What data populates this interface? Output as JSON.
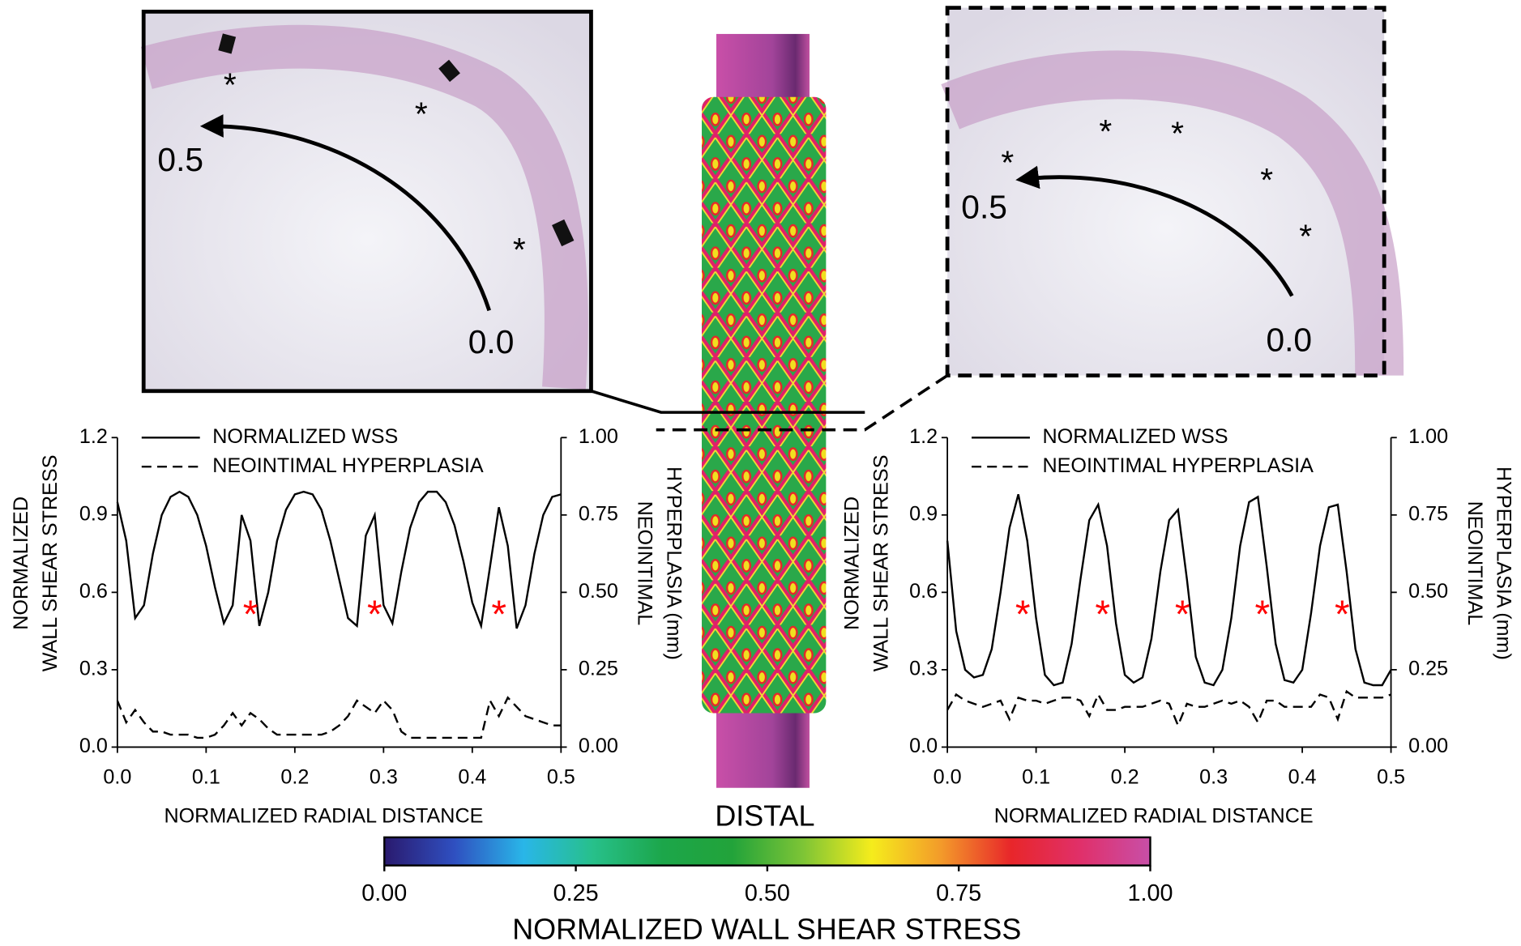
{
  "chart_data": [
    {
      "type": "line",
      "x": [
        0,
        0.01,
        0.02,
        0.03,
        0.04,
        0.05,
        0.06,
        0.07,
        0.08,
        0.09,
        0.1,
        0.11,
        0.12,
        0.13,
        0.14,
        0.15,
        0.16,
        0.17,
        0.18,
        0.19,
        0.2,
        0.21,
        0.22,
        0.23,
        0.24,
        0.25,
        0.26,
        0.27,
        0.28,
        0.29,
        0.3,
        0.31,
        0.32,
        0.33,
        0.34,
        0.35,
        0.36,
        0.37,
        0.38,
        0.39,
        0.4,
        0.41,
        0.42,
        0.43,
        0.44,
        0.45,
        0.46,
        0.47,
        0.48,
        0.49,
        0.5
      ],
      "xlim": [
        0,
        0.5
      ],
      "xticks": [
        {
          "value": 0,
          "label": "0.0"
        },
        0.1,
        0.2,
        0.3,
        0.4,
        0.5
      ],
      "ylim": [
        0,
        1.2
      ],
      "yticks": [
        {
          "value": 0,
          "label": "0.0"
        },
        0.3,
        0.6,
        0.9,
        1.2
      ],
      "y2lim": [
        0,
        1
      ],
      "y2ticks": [
        {
          "value": 0,
          "label": "0.00"
        },
        {
          "value": 0.25,
          "label": "0.25"
        },
        {
          "value": 0.5,
          "label": "0.50"
        },
        {
          "value": 0.75,
          "label": "0.75"
        },
        {
          "value": 1,
          "label": "1.00"
        }
      ],
      "xlabel": "NORMALIZED RADIAL DISTANCE",
      "ylabel": [
        "NORMALIZED",
        "WALL SHEAR STRESS"
      ],
      "y2label": [
        "NEOINTIMAL",
        "HYPERPLASIA (mm)"
      ],
      "series": [
        {
          "name": "NORMALIZED WSS",
          "color": "#000000",
          "line_style": "solid",
          "values": [
            0.95,
            0.8,
            0.5,
            0.55,
            0.75,
            0.9,
            0.97,
            0.99,
            0.97,
            0.9,
            0.78,
            0.62,
            0.48,
            0.55,
            0.9,
            0.8,
            0.47,
            0.6,
            0.8,
            0.92,
            0.98,
            0.99,
            0.98,
            0.92,
            0.8,
            0.65,
            0.5,
            0.47,
            0.82,
            0.9,
            0.55,
            0.48,
            0.68,
            0.85,
            0.95,
            0.99,
            0.99,
            0.95,
            0.86,
            0.72,
            0.56,
            0.47,
            0.7,
            0.93,
            0.78,
            0.46,
            0.55,
            0.75,
            0.9,
            0.97,
            0.98
          ]
        },
        {
          "name": "NEOINTIMAL HYPERPLASIA",
          "color": "#000000",
          "line_style": "dashed",
          "axis": "y2",
          "values": [
            0.15,
            0.08,
            0.12,
            0.08,
            0.05,
            0.05,
            0.04,
            0.04,
            0.04,
            0.03,
            0.03,
            0.04,
            0.07,
            0.11,
            0.07,
            0.11,
            0.09,
            0.06,
            0.04,
            0.04,
            0.04,
            0.04,
            0.04,
            0.04,
            0.05,
            0.07,
            0.1,
            0.15,
            0.13,
            0.11,
            0.15,
            0.12,
            0.05,
            0.03,
            0.03,
            0.03,
            0.03,
            0.03,
            0.03,
            0.03,
            0.03,
            0.03,
            0.15,
            0.1,
            0.16,
            0.13,
            0.1,
            0.09,
            0.08,
            0.07,
            0.07
          ]
        }
      ],
      "annotation_color": "#ff0000",
      "annotations": [
        {
          "text": "*",
          "x": 0.15,
          "y": 0.55
        },
        {
          "text": "*",
          "x": 0.29,
          "y": 0.55
        },
        {
          "text": "*",
          "x": 0.43,
          "y": 0.55
        }
      ]
    },
    {
      "type": "line",
      "x": [
        0,
        0.01,
        0.02,
        0.03,
        0.04,
        0.05,
        0.06,
        0.07,
        0.08,
        0.09,
        0.1,
        0.11,
        0.12,
        0.13,
        0.14,
        0.15,
        0.16,
        0.17,
        0.18,
        0.19,
        0.2,
        0.21,
        0.22,
        0.23,
        0.24,
        0.25,
        0.26,
        0.27,
        0.28,
        0.29,
        0.3,
        0.31,
        0.32,
        0.33,
        0.34,
        0.35,
        0.36,
        0.37,
        0.38,
        0.39,
        0.4,
        0.41,
        0.42,
        0.43,
        0.44,
        0.45,
        0.46,
        0.47,
        0.48,
        0.49,
        0.5
      ],
      "xlim": [
        0,
        0.5
      ],
      "xticks": [
        {
          "value": 0,
          "label": "0.0"
        },
        0.1,
        0.2,
        0.3,
        0.4,
        0.5
      ],
      "ylim": [
        0,
        1.2
      ],
      "yticks": [
        {
          "value": 0,
          "label": "0.0"
        },
        0.3,
        0.6,
        0.9,
        1.2
      ],
      "y2lim": [
        0,
        1
      ],
      "y2ticks": [
        {
          "value": 0,
          "label": "0.00"
        },
        {
          "value": 0.25,
          "label": "0.25"
        },
        {
          "value": 0.5,
          "label": "0.50"
        },
        {
          "value": 0.75,
          "label": "0.75"
        },
        {
          "value": 1,
          "label": "1.00"
        }
      ],
      "xlabel": "NORMALIZED RADIAL DISTANCE",
      "ylabel": [
        "NORMALIZED",
        "WALL SHEAR STRESS"
      ],
      "y2label": [
        "NEOINTIMAL",
        "HYPERPLASIA (mm)"
      ],
      "series": [
        {
          "name": "NORMALIZED WSS",
          "color": "#000000",
          "line_style": "solid",
          "values": [
            0.8,
            0.45,
            0.3,
            0.27,
            0.28,
            0.38,
            0.6,
            0.85,
            0.98,
            0.8,
            0.5,
            0.28,
            0.24,
            0.25,
            0.4,
            0.65,
            0.88,
            0.94,
            0.78,
            0.48,
            0.28,
            0.25,
            0.27,
            0.42,
            0.68,
            0.88,
            0.92,
            0.65,
            0.35,
            0.25,
            0.24,
            0.3,
            0.5,
            0.78,
            0.95,
            0.97,
            0.7,
            0.4,
            0.26,
            0.25,
            0.3,
            0.52,
            0.78,
            0.93,
            0.94,
            0.68,
            0.38,
            0.25,
            0.24,
            0.24,
            0.3
          ]
        },
        {
          "name": "NEOINTIMAL HYPERPLASIA",
          "color": "#000000",
          "line_style": "dashed",
          "axis": "y2",
          "values": [
            0.12,
            0.17,
            0.15,
            0.14,
            0.13,
            0.14,
            0.15,
            0.09,
            0.16,
            0.15,
            0.15,
            0.14,
            0.15,
            0.16,
            0.16,
            0.15,
            0.1,
            0.17,
            0.12,
            0.12,
            0.13,
            0.13,
            0.13,
            0.14,
            0.15,
            0.14,
            0.07,
            0.14,
            0.13,
            0.13,
            0.14,
            0.15,
            0.14,
            0.15,
            0.13,
            0.08,
            0.15,
            0.15,
            0.13,
            0.13,
            0.13,
            0.13,
            0.17,
            0.16,
            0.09,
            0.18,
            0.16,
            0.16,
            0.16,
            0.16,
            0.17
          ]
        }
      ],
      "annotation_color": "#ff0000",
      "annotations": [
        {
          "text": "*",
          "x": 0.085,
          "y": 0.55
        },
        {
          "text": "*",
          "x": 0.175,
          "y": 0.55
        },
        {
          "text": "*",
          "x": 0.265,
          "y": 0.55
        },
        {
          "text": "*",
          "x": 0.355,
          "y": 0.55
        },
        {
          "text": "*",
          "x": 0.445,
          "y": 0.55
        }
      ]
    }
  ],
  "panels": [
    {
      "start": "0.0",
      "end": "0.5",
      "asterisk": "*"
    },
    {
      "start": "0.0",
      "end": "0.5",
      "asterisk": "*"
    }
  ],
  "distal_label": "DISTAL",
  "colorbar": {
    "title": "NORMALIZED WALL SHEAR STRESS",
    "colors": [
      "#2a1a6e",
      "#2f4fc0",
      "#29b6e8",
      "#27c08a",
      "#1ca64a",
      "#22a33a",
      "#7cc436",
      "#f5ec1c",
      "#f39a2a",
      "#e8262a",
      "#e0306a",
      "#c84fa8"
    ],
    "ticks": [
      {
        "value": 0,
        "label": "0.00"
      },
      {
        "value": 0.25,
        "label": "0.25"
      },
      {
        "value": 0.5,
        "label": "0.50"
      },
      {
        "value": 0.75,
        "label": "0.75"
      },
      {
        "value": 1,
        "label": "1.00"
      }
    ]
  }
}
